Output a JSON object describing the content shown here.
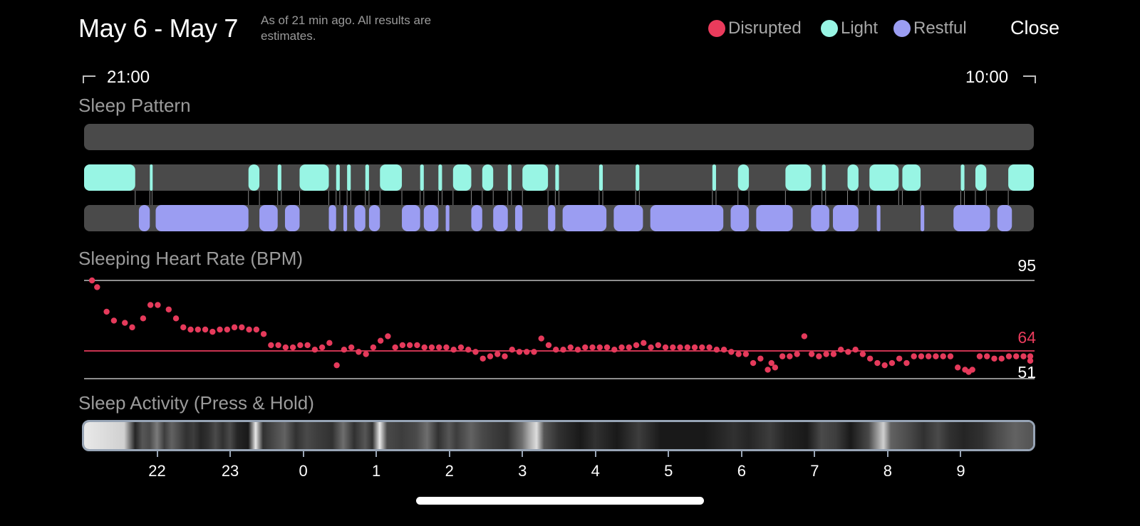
{
  "header": {
    "date_range": "May 6 - May 7",
    "as_of": "As of 21 min ago. All results are estimates.",
    "close_label": "Close"
  },
  "legend": [
    {
      "label": "Disrupted",
      "color": "#ea3b5c"
    },
    {
      "label": "Light",
      "color": "#98f5e4"
    },
    {
      "label": "Restful",
      "color": "#9b9df2"
    }
  ],
  "time_range": {
    "start": "21:00",
    "end": "10:00"
  },
  "sections": {
    "sleep_pattern": "Sleep Pattern",
    "heart_rate": "Sleeping Heart Rate (BPM)",
    "activity": "Sleep Activity (Press & Hold)"
  },
  "heart_rate": {
    "max": "95",
    "avg": "64",
    "min": "51",
    "avg_color": "#ea3b5c"
  },
  "axis": {
    "hours": [
      "22",
      "23",
      "0",
      "1",
      "2",
      "3",
      "4",
      "5",
      "6",
      "7",
      "8",
      "9"
    ]
  },
  "colors": {
    "track": "#4a4a4a",
    "light": "#98f5e4",
    "restful": "#9b9df2",
    "heart_rate_dot": "#e53a5b",
    "hr_line": "#8e8e8e"
  },
  "chart_data": [
    {
      "type": "area",
      "title": "Sleep Pattern",
      "x_unit": "hours since 21:00",
      "x_range": [
        0,
        13
      ],
      "series": [
        {
          "name": "Disrupted",
          "segments": []
        },
        {
          "name": "Light",
          "segments": [
            [
              0.0,
              0.7
            ],
            [
              0.9,
              0.93
            ],
            [
              2.25,
              2.4
            ],
            [
              2.65,
              2.7
            ],
            [
              2.95,
              3.35
            ],
            [
              3.45,
              3.5
            ],
            [
              3.6,
              3.65
            ],
            [
              3.85,
              3.9
            ],
            [
              4.05,
              4.35
            ],
            [
              4.6,
              4.65
            ],
            [
              4.85,
              4.9
            ],
            [
              5.05,
              5.3
            ],
            [
              5.45,
              5.6
            ],
            [
              5.8,
              5.85
            ],
            [
              6.0,
              6.35
            ],
            [
              6.45,
              6.5
            ],
            [
              7.05,
              7.1
            ],
            [
              7.55,
              7.6
            ],
            [
              8.6,
              8.65
            ],
            [
              8.95,
              9.1
            ],
            [
              9.6,
              9.95
            ],
            [
              10.1,
              10.15
            ],
            [
              10.45,
              10.6
            ],
            [
              10.75,
              11.15
            ],
            [
              11.2,
              11.45
            ],
            [
              12.0,
              12.05
            ],
            [
              12.2,
              12.35
            ],
            [
              12.65,
              13.0
            ]
          ]
        },
        {
          "name": "Restful",
          "segments": [
            [
              0.75,
              0.9
            ],
            [
              0.98,
              2.25
            ],
            [
              2.4,
              2.65
            ],
            [
              2.75,
              2.95
            ],
            [
              3.35,
              3.45
            ],
            [
              3.55,
              3.6
            ],
            [
              3.7,
              3.85
            ],
            [
              3.9,
              4.05
            ],
            [
              4.35,
              4.6
            ],
            [
              4.65,
              4.85
            ],
            [
              4.95,
              5.0
            ],
            [
              5.3,
              5.45
            ],
            [
              5.6,
              5.8
            ],
            [
              5.9,
              6.0
            ],
            [
              6.35,
              6.45
            ],
            [
              6.55,
              7.15
            ],
            [
              7.25,
              7.65
            ],
            [
              7.75,
              8.75
            ],
            [
              8.85,
              9.1
            ],
            [
              9.2,
              9.7
            ],
            [
              9.95,
              10.2
            ],
            [
              10.25,
              10.6
            ],
            [
              10.85,
              10.9
            ],
            [
              11.45,
              11.5
            ],
            [
              11.9,
              12.4
            ],
            [
              12.5,
              12.7
            ]
          ]
        }
      ]
    },
    {
      "type": "scatter",
      "title": "Sleeping Heart Rate (BPM)",
      "x_unit": "hours since 21:00",
      "ylim": [
        51,
        95
      ],
      "reference_lines": {
        "max": 95,
        "avg": 64,
        "min": 51
      },
      "points": [
        [
          0.05,
          95
        ],
        [
          0.12,
          92
        ],
        [
          0.25,
          81
        ],
        [
          0.35,
          77
        ],
        [
          0.5,
          76
        ],
        [
          0.6,
          74
        ],
        [
          0.75,
          78
        ],
        [
          0.85,
          84
        ],
        [
          0.95,
          84
        ],
        [
          1.1,
          82
        ],
        [
          1.2,
          78
        ],
        [
          1.3,
          74
        ],
        [
          1.4,
          73
        ],
        [
          1.5,
          73
        ],
        [
          1.6,
          73
        ],
        [
          1.7,
          72
        ],
        [
          1.8,
          73
        ],
        [
          1.9,
          73
        ],
        [
          2.0,
          74
        ],
        [
          2.1,
          74
        ],
        [
          2.2,
          73
        ],
        [
          2.3,
          73
        ],
        [
          2.4,
          71
        ],
        [
          2.5,
          66
        ],
        [
          2.6,
          66
        ],
        [
          2.7,
          65
        ],
        [
          2.8,
          65
        ],
        [
          2.9,
          66
        ],
        [
          3.0,
          66
        ],
        [
          3.1,
          64
        ],
        [
          3.2,
          65
        ],
        [
          3.3,
          67
        ],
        [
          3.4,
          57
        ],
        [
          3.5,
          64
        ],
        [
          3.6,
          65
        ],
        [
          3.7,
          63
        ],
        [
          3.8,
          62
        ],
        [
          3.9,
          65
        ],
        [
          4.0,
          68
        ],
        [
          4.1,
          70
        ],
        [
          4.2,
          65
        ],
        [
          4.3,
          66
        ],
        [
          4.4,
          66
        ],
        [
          4.5,
          66
        ],
        [
          4.6,
          65
        ],
        [
          4.7,
          65
        ],
        [
          4.8,
          65
        ],
        [
          4.9,
          65
        ],
        [
          5.0,
          64
        ],
        [
          5.1,
          65
        ],
        [
          5.2,
          64
        ],
        [
          5.3,
          63
        ],
        [
          5.4,
          60
        ],
        [
          5.5,
          61
        ],
        [
          5.6,
          62
        ],
        [
          5.7,
          61
        ],
        [
          5.8,
          64
        ],
        [
          5.9,
          63
        ],
        [
          6.0,
          63
        ],
        [
          6.1,
          63
        ],
        [
          6.2,
          69
        ],
        [
          6.3,
          66
        ],
        [
          6.4,
          64
        ],
        [
          6.5,
          64
        ],
        [
          6.6,
          65
        ],
        [
          6.7,
          64
        ],
        [
          6.8,
          65
        ],
        [
          6.9,
          65
        ],
        [
          7.0,
          65
        ],
        [
          7.1,
          65
        ],
        [
          7.2,
          64
        ],
        [
          7.3,
          65
        ],
        [
          7.4,
          65
        ],
        [
          7.5,
          66
        ],
        [
          7.6,
          67
        ],
        [
          7.7,
          65
        ],
        [
          7.8,
          66
        ],
        [
          7.9,
          65
        ],
        [
          8.0,
          65
        ],
        [
          8.1,
          65
        ],
        [
          8.2,
          65
        ],
        [
          8.3,
          65
        ],
        [
          8.4,
          65
        ],
        [
          8.5,
          65
        ],
        [
          8.6,
          64
        ],
        [
          8.7,
          64
        ],
        [
          8.8,
          63
        ],
        [
          8.9,
          62
        ],
        [
          9.0,
          62
        ],
        [
          9.1,
          58
        ],
        [
          9.2,
          60
        ],
        [
          9.3,
          55
        ],
        [
          9.35,
          58
        ],
        [
          9.4,
          56
        ],
        [
          9.5,
          61
        ],
        [
          9.6,
          61
        ],
        [
          9.7,
          62
        ],
        [
          9.8,
          70
        ],
        [
          9.9,
          62
        ],
        [
          10.0,
          61
        ],
        [
          10.1,
          62
        ],
        [
          10.2,
          62
        ],
        [
          10.3,
          64
        ],
        [
          10.4,
          63
        ],
        [
          10.5,
          64
        ],
        [
          10.6,
          62
        ],
        [
          10.7,
          60
        ],
        [
          10.8,
          58
        ],
        [
          10.9,
          57
        ],
        [
          11.0,
          58
        ],
        [
          11.1,
          60
        ],
        [
          11.2,
          58
        ],
        [
          11.3,
          61
        ],
        [
          11.4,
          61
        ],
        [
          11.5,
          61
        ],
        [
          11.6,
          61
        ],
        [
          11.7,
          61
        ],
        [
          11.8,
          61
        ],
        [
          11.9,
          56
        ],
        [
          12.0,
          55
        ],
        [
          12.05,
          54
        ],
        [
          12.1,
          55
        ],
        [
          12.2,
          61
        ],
        [
          12.3,
          61
        ],
        [
          12.4,
          60
        ],
        [
          12.5,
          60
        ],
        [
          12.6,
          61
        ],
        [
          12.7,
          61
        ],
        [
          12.8,
          61
        ],
        [
          12.9,
          61
        ],
        [
          13.0,
          59
        ]
      ]
    },
    {
      "type": "heatmap",
      "title": "Sleep Activity (Press & Hold)",
      "x_unit": "hours since 21:00",
      "intensity": [
        [
          0.0,
          0.95
        ],
        [
          0.55,
          0.85
        ],
        [
          0.7,
          0.15
        ],
        [
          0.8,
          0.35
        ],
        [
          0.9,
          0.3
        ],
        [
          1.0,
          0.5
        ],
        [
          1.1,
          0.25
        ],
        [
          1.2,
          0.4
        ],
        [
          1.3,
          0.3
        ],
        [
          1.4,
          0.2
        ],
        [
          1.5,
          0.25
        ],
        [
          1.6,
          0.15
        ],
        [
          1.7,
          0.2
        ],
        [
          1.8,
          0.3
        ],
        [
          1.9,
          0.2
        ],
        [
          2.0,
          0.3
        ],
        [
          2.1,
          0.15
        ],
        [
          2.25,
          0.1
        ],
        [
          2.35,
          0.95
        ],
        [
          2.45,
          0.2
        ],
        [
          2.6,
          0.3
        ],
        [
          2.75,
          0.4
        ],
        [
          2.9,
          0.2
        ],
        [
          3.05,
          0.3
        ],
        [
          3.2,
          0.25
        ],
        [
          3.4,
          0.2
        ],
        [
          3.55,
          0.45
        ],
        [
          3.7,
          0.2
        ],
        [
          3.85,
          0.35
        ],
        [
          3.95,
          0.2
        ],
        [
          4.05,
          0.95
        ],
        [
          4.15,
          0.3
        ],
        [
          4.35,
          0.25
        ],
        [
          4.55,
          0.3
        ],
        [
          4.7,
          0.45
        ],
        [
          4.85,
          0.2
        ],
        [
          5.0,
          0.35
        ],
        [
          5.1,
          0.25
        ],
        [
          5.3,
          0.4
        ],
        [
          5.45,
          0.3
        ],
        [
          5.6,
          0.25
        ],
        [
          5.8,
          0.2
        ],
        [
          6.0,
          0.45
        ],
        [
          6.1,
          0.7
        ],
        [
          6.2,
          0.9
        ],
        [
          6.3,
          0.35
        ],
        [
          6.5,
          0.2
        ],
        [
          6.8,
          0.1
        ],
        [
          7.0,
          0.2
        ],
        [
          7.3,
          0.1
        ],
        [
          7.6,
          0.25
        ],
        [
          7.9,
          0.1
        ],
        [
          8.2,
          0.1
        ],
        [
          8.5,
          0.1
        ],
        [
          8.9,
          0.2
        ],
        [
          9.1,
          0.15
        ],
        [
          9.4,
          0.25
        ],
        [
          9.6,
          0.15
        ],
        [
          9.9,
          0.1
        ],
        [
          10.1,
          0.3
        ],
        [
          10.3,
          0.25
        ],
        [
          10.5,
          0.1
        ],
        [
          10.75,
          0.3
        ],
        [
          10.95,
          0.85
        ],
        [
          11.05,
          0.4
        ],
        [
          11.3,
          0.3
        ],
        [
          11.5,
          0.2
        ],
        [
          11.7,
          0.3
        ],
        [
          11.85,
          0.2
        ],
        [
          12.05,
          0.15
        ],
        [
          12.3,
          0.2
        ],
        [
          12.5,
          0.3
        ],
        [
          12.75,
          0.4
        ],
        [
          12.95,
          0.35
        ]
      ]
    }
  ]
}
